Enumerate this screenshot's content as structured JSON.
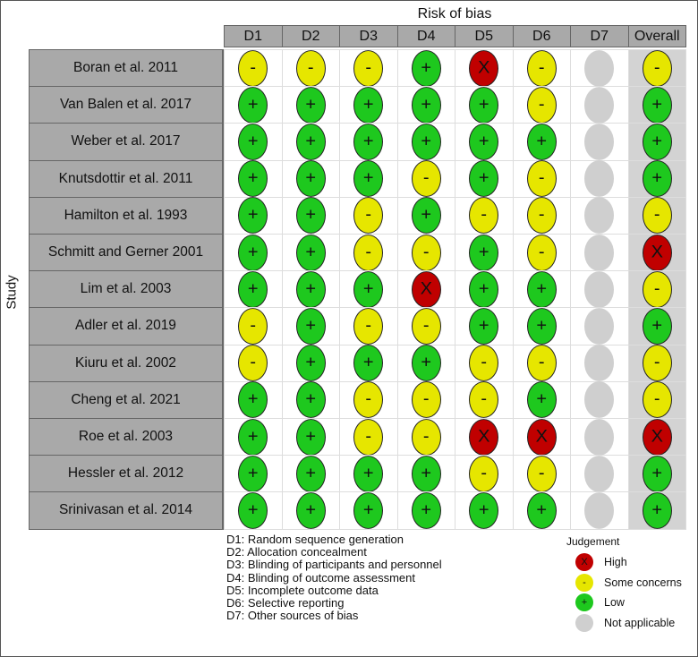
{
  "chart_data": {
    "type": "table",
    "title": "Risk of bias",
    "ylabel": "Study",
    "columns": [
      "D1",
      "D2",
      "D3",
      "D4",
      "D5",
      "D6",
      "D7",
      "Overall"
    ],
    "studies": [
      "Boran et al. 2011",
      "Van Balen et al. 2017",
      "Weber et al. 2017",
      "Knutsdottir et al. 2011",
      "Hamilton et al. 1993",
      "Schmitt and Gerner 2001",
      "Lim et al. 2003",
      "Adler et al. 2019",
      "Kiuru et al. 2002",
      "Cheng et al. 2021",
      "Roe et al. 2003",
      "Hessler et al. 2012",
      "Srinivasan et al. 2014"
    ],
    "judgements": [
      [
        "Some concerns",
        "Some concerns",
        "Some concerns",
        "Low",
        "High",
        "Some concerns",
        "Not applicable",
        "Some concerns"
      ],
      [
        "Low",
        "Low",
        "Low",
        "Low",
        "Low",
        "Some concerns",
        "Not applicable",
        "Low"
      ],
      [
        "Low",
        "Low",
        "Low",
        "Low",
        "Low",
        "Low",
        "Not applicable",
        "Low"
      ],
      [
        "Low",
        "Low",
        "Low",
        "Some concerns",
        "Low",
        "Some concerns",
        "Not applicable",
        "Low"
      ],
      [
        "Low",
        "Low",
        "Some concerns",
        "Low",
        "Some concerns",
        "Some concerns",
        "Not applicable",
        "Some concerns"
      ],
      [
        "Low",
        "Low",
        "Some concerns",
        "Some concerns",
        "Low",
        "Some concerns",
        "Not applicable",
        "High"
      ],
      [
        "Low",
        "Low",
        "Low",
        "High",
        "Low",
        "Low",
        "Not applicable",
        "Some concerns"
      ],
      [
        "Some concerns",
        "Low",
        "Some concerns",
        "Some concerns",
        "Low",
        "Low",
        "Not applicable",
        "Low"
      ],
      [
        "Some concerns",
        "Low",
        "Low",
        "Low",
        "Some concerns",
        "Some concerns",
        "Not applicable",
        "Some concerns"
      ],
      [
        "Low",
        "Low",
        "Some concerns",
        "Some concerns",
        "Some concerns",
        "Low",
        "Not applicable",
        "Some concerns"
      ],
      [
        "Low",
        "Low",
        "Some concerns",
        "Some concerns",
        "High",
        "High",
        "Not applicable",
        "High"
      ],
      [
        "Low",
        "Low",
        "Low",
        "Low",
        "Some concerns",
        "Some concerns",
        "Not applicable",
        "Low"
      ],
      [
        "Low",
        "Low",
        "Low",
        "Low",
        "Low",
        "Low",
        "Not applicable",
        "Low"
      ]
    ],
    "domain_legend": [
      "D1: Random sequence generation",
      "D2: Allocation concealment",
      "D3: Blinding of participants and personnel",
      "D4: Blinding of outcome assessment",
      "D5: Incomplete outcome data",
      "D6: Selective reporting",
      "D7: Other sources of bias"
    ],
    "judgement_legend": {
      "title": "Judgement",
      "items": [
        {
          "label": "High",
          "symbol": "X",
          "color": "#c00000"
        },
        {
          "label": "Some concerns",
          "symbol": "-",
          "color": "#e6e600"
        },
        {
          "label": "Low",
          "symbol": "+",
          "color": "#1ec81e"
        },
        {
          "label": "Not applicable",
          "symbol": "",
          "color": "#cfcfcf"
        }
      ]
    }
  }
}
